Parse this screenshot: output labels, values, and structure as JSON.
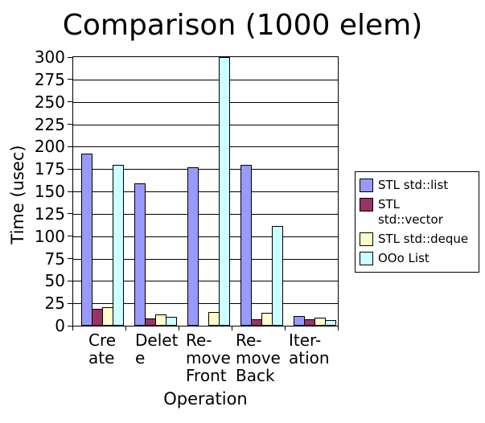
{
  "page": {
    "background": "#ffffff",
    "frame_color": "#000000"
  },
  "chart_data": {
    "type": "bar",
    "title": "Comparison (1000 elem)",
    "xlabel": "Operation",
    "ylabel": "Time (usec)",
    "ylim": [
      0,
      300
    ],
    "yticks": [
      0,
      25,
      50,
      75,
      100,
      125,
      150,
      175,
      200,
      225,
      250,
      275,
      300
    ],
    "grid": true,
    "legend_position": "right",
    "categories": [
      "Create",
      "Delete",
      "Remove Front",
      "Remove Back",
      "Iteration"
    ],
    "category_label_lines": [
      [
        "Cre",
        "ate"
      ],
      [
        "Delet",
        "e"
      ],
      [
        "Re-",
        "move",
        "Front"
      ],
      [
        "Re-",
        "move",
        "Back"
      ],
      [
        "Iter-",
        "ation"
      ]
    ],
    "series": [
      {
        "name": "STL std::list",
        "name_lines": [
          "STL std::list"
        ],
        "color": "#9999ff",
        "values": [
          192,
          159,
          177,
          180,
          11
        ]
      },
      {
        "name": "STL std::vector",
        "name_lines": [
          "STL",
          "std::vector"
        ],
        "color": "#993366",
        "values": [
          19,
          8,
          0,
          7,
          7
        ]
      },
      {
        "name": "STL std::deque",
        "name_lines": [
          "STL std::deque"
        ],
        "color": "#ffffcc",
        "values": [
          21,
          13,
          15,
          14,
          9
        ]
      },
      {
        "name": "OOo List",
        "name_lines": [
          "OOo List"
        ],
        "color": "#ccffff",
        "values": [
          180,
          10,
          300,
          111,
          6
        ]
      }
    ]
  }
}
